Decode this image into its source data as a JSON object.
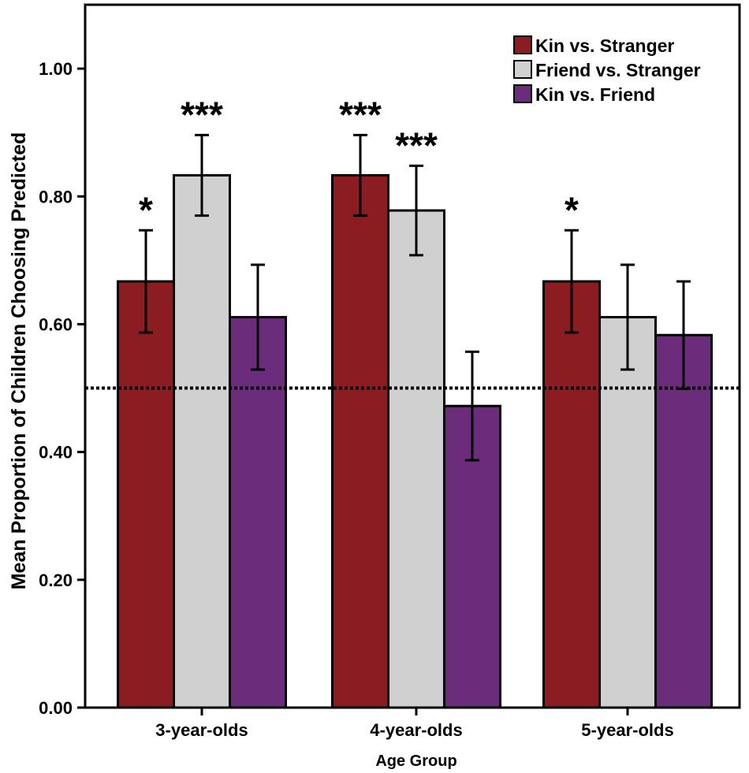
{
  "chart_data": {
    "type": "bar",
    "title": "",
    "xlabel": "Age Group",
    "ylabel": "Mean Proportion of Children Choosing Predicted",
    "ylim": [
      0,
      1.1
    ],
    "yticks": [
      "0.00",
      "0.20",
      "0.40",
      "0.60",
      "0.80",
      "1.00"
    ],
    "ytick_values": [
      0,
      0.2,
      0.4,
      0.6,
      0.8,
      1.0
    ],
    "categories": [
      "3-year-olds",
      "4-year-olds",
      "5-year-olds"
    ],
    "chance_line": 0.5,
    "legend_position": "top-right",
    "series": [
      {
        "name": "Kin vs. Stranger",
        "color": "#8b1c21",
        "values": [
          0.667,
          0.833,
          0.667
        ],
        "errors": [
          0.08,
          0.063,
          0.08
        ],
        "significance": [
          "*",
          "***",
          "*"
        ]
      },
      {
        "name": "Friend vs. Stranger",
        "color": "#d0d0d0",
        "values": [
          0.833,
          0.778,
          0.611
        ],
        "errors": [
          0.063,
          0.07,
          0.082
        ],
        "significance": [
          "***",
          "***",
          ""
        ]
      },
      {
        "name": "Kin vs. Friend",
        "color": "#6b2c7c",
        "values": [
          0.611,
          0.472,
          0.583
        ],
        "errors": [
          0.082,
          0.085,
          0.084
        ],
        "significance": [
          "",
          "",
          ""
        ]
      }
    ]
  }
}
